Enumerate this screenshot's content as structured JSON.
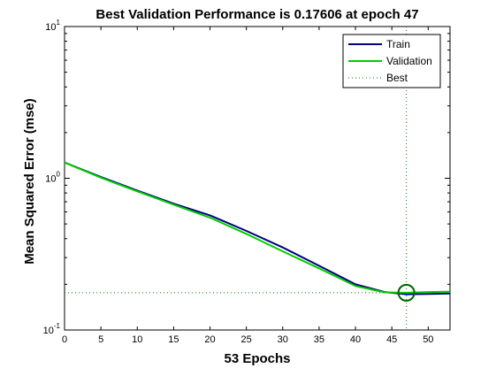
{
  "chart_data": {
    "type": "line",
    "title": "Best Validation Performance is 0.17606 at epoch 47",
    "xlabel": "53 Epochs",
    "ylabel": "Mean Squared Error  (mse)",
    "xlim": [
      0,
      53
    ],
    "ylim": [
      0.1,
      10
    ],
    "yscale": "log",
    "xticks": [
      0,
      5,
      10,
      15,
      20,
      25,
      30,
      35,
      40,
      45,
      50
    ],
    "yticks": [
      {
        "value": 0.1,
        "base": "10",
        "exp": "-1"
      },
      {
        "value": 1,
        "base": "10",
        "exp": "0"
      },
      {
        "value": 10,
        "base": "10",
        "exp": "1"
      }
    ],
    "legend_position": "top-right",
    "series": [
      {
        "name": "Train",
        "color": "#000080",
        "x": [
          0,
          5,
          10,
          15,
          20,
          25,
          30,
          35,
          40,
          44,
          47,
          50,
          53
        ],
        "y": [
          1.27,
          1.02,
          0.83,
          0.68,
          0.57,
          0.45,
          0.35,
          0.265,
          0.2,
          0.178,
          0.172,
          0.173,
          0.174
        ]
      },
      {
        "name": "Validation",
        "color": "#00cc00",
        "x": [
          0,
          5,
          10,
          15,
          20,
          25,
          30,
          35,
          40,
          44,
          47,
          50,
          53
        ],
        "y": [
          1.27,
          1.01,
          0.82,
          0.67,
          0.55,
          0.43,
          0.33,
          0.255,
          0.195,
          0.177,
          0.176,
          0.178,
          0.179
        ]
      }
    ],
    "best": {
      "name": "Best",
      "color": "#008000",
      "epoch": 47,
      "value": 0.17606
    }
  }
}
